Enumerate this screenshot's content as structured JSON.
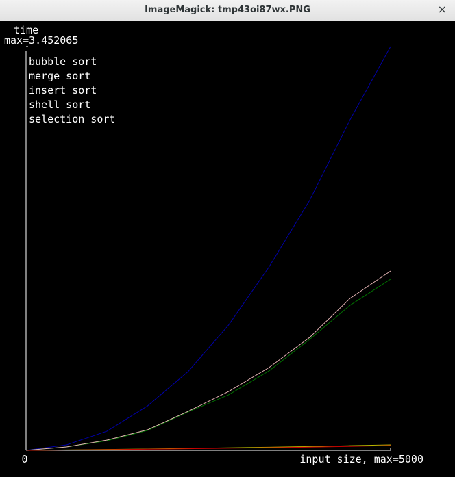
{
  "window": {
    "title": "ImageMagick: tmp43oi87wx.PNG",
    "close": "×"
  },
  "chart_data": {
    "type": "line",
    "y_label": "time",
    "x": [
      0,
      556,
      1111,
      1667,
      2222,
      2778,
      3333,
      3889,
      4444,
      5000
    ],
    "xlim": [
      0,
      5000
    ],
    "xticks": [
      0,
      {
        "value": 5000,
        "label": "input size, max=5000"
      }
    ],
    "ylim": [
      0,
      3.452065
    ],
    "yticks": [
      {
        "value": 3.452065,
        "label": "max=3.452065"
      }
    ],
    "legend": "upper left",
    "series": [
      {
        "name": "bubble sort",
        "color": "#0000a8",
        "values": [
          0,
          0.047,
          0.164,
          0.38,
          0.673,
          1.071,
          1.568,
          2.136,
          2.826,
          3.452
        ]
      },
      {
        "name": "merge sort",
        "color": "#b8b800",
        "values": [
          0,
          0.004,
          0.008,
          0.012,
          0.017,
          0.022,
          0.027,
          0.033,
          0.04,
          0.047
        ]
      },
      {
        "name": "insert sort",
        "color": "#007000",
        "values": [
          0,
          0.029,
          0.082,
          0.17,
          0.328,
          0.474,
          0.679,
          0.948,
          1.24,
          1.463
        ]
      },
      {
        "name": "shell sort",
        "color": "#c80000",
        "values": [
          0,
          0.003,
          0.006,
          0.01,
          0.014,
          0.018,
          0.023,
          0.028,
          0.034,
          0.041
        ]
      },
      {
        "name": "selection sort",
        "color": "#e4b4b4",
        "values": [
          0,
          0.029,
          0.088,
          0.176,
          0.333,
          0.503,
          0.708,
          0.965,
          1.299,
          1.533
        ]
      }
    ]
  }
}
